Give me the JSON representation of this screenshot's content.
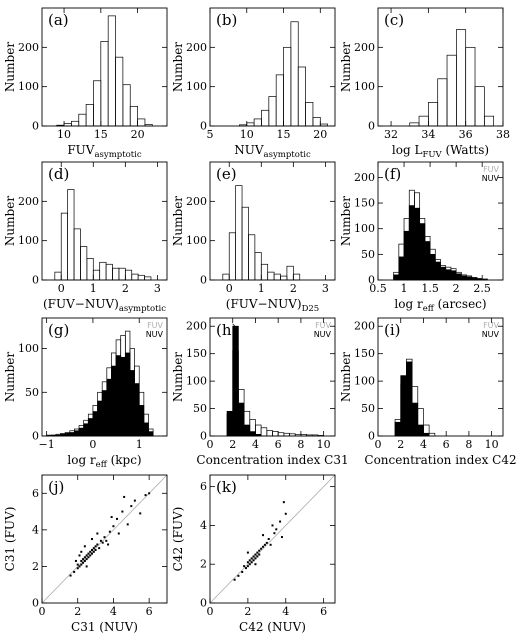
{
  "figure": {
    "background": "#ffffff",
    "ink": "#000000",
    "legend_fuv_color": "#b0b0b0"
  },
  "chart_data": [
    {
      "id": "a",
      "panel_label": "(a)",
      "type": "bar",
      "ylabel": "Number",
      "xlabel": "FUV",
      "xlabel_sub": "asymptotic",
      "xlim": [
        7,
        24
      ],
      "ylim": [
        0,
        300
      ],
      "xticks": [
        10,
        15,
        20
      ],
      "yticks": [
        0,
        100,
        200
      ],
      "histograms": [
        {
          "style": "open",
          "edges": [
            9,
            10,
            11,
            12,
            13,
            14,
            15,
            16,
            17,
            18,
            19,
            20,
            21,
            22
          ],
          "counts": [
            2,
            6,
            12,
            30,
            55,
            115,
            215,
            280,
            175,
            105,
            50,
            18,
            4
          ]
        }
      ]
    },
    {
      "id": "b",
      "panel_label": "(b)",
      "type": "bar",
      "ylabel": "Number",
      "xlabel": "NUV",
      "xlabel_sub": "asymptotic",
      "xlim": [
        5,
        22
      ],
      "ylim": [
        0,
        300
      ],
      "xticks": [
        5,
        10,
        15,
        20
      ],
      "yticks": [
        0,
        100,
        200
      ],
      "histograms": [
        {
          "style": "open",
          "edges": [
            9,
            10,
            11,
            12,
            13,
            14,
            15,
            16,
            17,
            18,
            19,
            20,
            21
          ],
          "counts": [
            3,
            8,
            18,
            40,
            75,
            130,
            200,
            265,
            150,
            60,
            22,
            5
          ]
        }
      ]
    },
    {
      "id": "c",
      "panel_label": "(c)",
      "type": "bar",
      "ylabel": "Number",
      "xlabel": "log L",
      "xlabel_sub": "FUV",
      "xlabel_after": " (Watts)",
      "xlim": [
        31.3,
        38
      ],
      "ylim": [
        0,
        300
      ],
      "xticks": [
        32,
        34,
        36,
        38
      ],
      "yticks": [
        0,
        100,
        200
      ],
      "histograms": [
        {
          "style": "open",
          "edges": [
            33,
            33.5,
            34,
            34.5,
            35,
            35.5,
            36,
            36.5,
            37,
            37.5
          ],
          "counts": [
            8,
            25,
            60,
            120,
            180,
            245,
            200,
            100,
            25
          ]
        }
      ]
    },
    {
      "id": "d",
      "panel_label": "(d)",
      "type": "bar",
      "ylabel": "Number",
      "xlabel": "(FUV−NUV)",
      "xlabel_sub": "asymptotic",
      "xlim": [
        -0.6,
        3.3
      ],
      "ylim": [
        0,
        300
      ],
      "xticks": [
        0,
        1,
        2,
        3
      ],
      "yticks": [
        0,
        100,
        200
      ],
      "histograms": [
        {
          "style": "open",
          "edges": [
            -0.2,
            0,
            0.2,
            0.4,
            0.6,
            0.8,
            1.0,
            1.2,
            1.4,
            1.6,
            1.8,
            2.0,
            2.2,
            2.4,
            2.6,
            2.8
          ],
          "counts": [
            20,
            170,
            230,
            130,
            85,
            55,
            25,
            45,
            40,
            30,
            30,
            25,
            15,
            12,
            8
          ]
        }
      ]
    },
    {
      "id": "e",
      "panel_label": "(e)",
      "type": "bar",
      "ylabel": "Number",
      "xlabel": "(FUV−NUV)",
      "xlabel_sub": "D25",
      "xlim": [
        -0.6,
        3.3
      ],
      "ylim": [
        0,
        300
      ],
      "xticks": [
        0,
        1,
        2,
        3
      ],
      "yticks": [
        0,
        100,
        200
      ],
      "histograms": [
        {
          "style": "open",
          "edges": [
            -0.2,
            0,
            0.2,
            0.4,
            0.6,
            0.8,
            1.0,
            1.2,
            1.4,
            1.6,
            1.8,
            2.0,
            2.2
          ],
          "counts": [
            15,
            120,
            240,
            185,
            115,
            70,
            40,
            20,
            15,
            10,
            35,
            15
          ]
        }
      ]
    },
    {
      "id": "f",
      "panel_label": "(f)",
      "type": "bar",
      "ylabel": "Number",
      "xlabel": "log r",
      "xlabel_sub": "eff",
      "xlabel_after": " (arcsec)",
      "xlim": [
        0.5,
        2.9
      ],
      "ylim": [
        0,
        230
      ],
      "xticks": [
        0.5,
        1,
        1.5,
        2,
        2.5
      ],
      "yticks": [
        0,
        50,
        100,
        150,
        200
      ],
      "legend": [
        "FUV",
        "NUV"
      ],
      "legend_position": "top-right",
      "histograms": [
        {
          "name": "FUV",
          "style": "open",
          "edges": [
            0.8,
            0.9,
            1.0,
            1.1,
            1.2,
            1.3,
            1.4,
            1.5,
            1.6,
            1.7,
            1.8,
            1.9,
            2.0,
            2.1,
            2.2,
            2.3,
            2.4,
            2.5,
            2.6
          ],
          "counts": [
            15,
            70,
            120,
            175,
            170,
            120,
            85,
            60,
            40,
            28,
            25,
            22,
            15,
            10,
            8,
            5,
            3,
            2
          ]
        },
        {
          "name": "NUV",
          "style": "filled",
          "edges": [
            0.8,
            0.9,
            1.0,
            1.1,
            1.2,
            1.3,
            1.4,
            1.5,
            1.6,
            1.7,
            1.8,
            1.9,
            2.0,
            2.1,
            2.2,
            2.3,
            2.4,
            2.5,
            2.6
          ],
          "counts": [
            10,
            45,
            95,
            145,
            140,
            110,
            75,
            50,
            35,
            25,
            20,
            18,
            12,
            8,
            6,
            4,
            2,
            1
          ]
        }
      ]
    },
    {
      "id": "g",
      "panel_label": "(g)",
      "type": "bar",
      "ylabel": "Number",
      "xlabel": "log r",
      "xlabel_sub": "eff",
      "xlabel_after": " (kpc)",
      "xlim": [
        -1.1,
        1.6
      ],
      "ylim": [
        0,
        135
      ],
      "xticks": [
        -1,
        0,
        1
      ],
      "yticks": [
        0,
        50,
        100
      ],
      "legend": [
        "FUV",
        "NUV"
      ],
      "legend_position": "top-right",
      "histograms": [
        {
          "name": "FUV",
          "style": "open",
          "edges": [
            -1,
            -0.9,
            -0.8,
            -0.7,
            -0.6,
            -0.5,
            -0.4,
            -0.3,
            -0.2,
            -0.1,
            0,
            0.1,
            0.2,
            0.3,
            0.4,
            0.5,
            0.6,
            0.7,
            0.8,
            0.9,
            1.0,
            1.1,
            1.2,
            1.3
          ],
          "counts": [
            1,
            1,
            2,
            3,
            4,
            6,
            8,
            12,
            18,
            25,
            35,
            50,
            62,
            78,
            95,
            110,
            115,
            120,
            100,
            80,
            50,
            25,
            8
          ]
        },
        {
          "name": "NUV",
          "style": "filled",
          "edges": [
            -1,
            -0.9,
            -0.8,
            -0.7,
            -0.6,
            -0.5,
            -0.4,
            -0.3,
            -0.2,
            -0.1,
            0,
            0.1,
            0.2,
            0.3,
            0.4,
            0.5,
            0.6,
            0.7,
            0.8,
            0.9,
            1.0,
            1.1,
            1.2,
            1.3
          ],
          "counts": [
            0,
            1,
            1,
            2,
            3,
            4,
            6,
            9,
            14,
            20,
            28,
            40,
            52,
            65,
            80,
            92,
            90,
            95,
            75,
            60,
            35,
            15,
            5
          ]
        }
      ]
    },
    {
      "id": "h",
      "panel_label": "(h)",
      "type": "bar",
      "ylabel": "Number",
      "xlabel": "Concentration index C31",
      "xlim": [
        0,
        11
      ],
      "ylim": [
        0,
        215
      ],
      "xticks": [
        0,
        2,
        4,
        6,
        8,
        10
      ],
      "yticks": [
        0,
        50,
        100,
        150,
        200
      ],
      "legend": [
        "FUV",
        "NUV"
      ],
      "legend_position": "top-right",
      "histograms": [
        {
          "name": "FUV",
          "style": "open",
          "edges": [
            1.5,
            2,
            2.5,
            3,
            3.5,
            4,
            4.5,
            5,
            5.5,
            6,
            6.5,
            7,
            7.5,
            8,
            8.5,
            9,
            9.5,
            10
          ],
          "counts": [
            40,
            155,
            85,
            45,
            30,
            20,
            15,
            10,
            8,
            6,
            5,
            4,
            3,
            3,
            2,
            2,
            1
          ]
        },
        {
          "name": "NUV",
          "style": "filled",
          "edges": [
            1.5,
            2,
            2.5,
            3,
            3.5,
            4,
            4.5
          ],
          "counts": [
            45,
            200,
            60,
            20,
            8,
            3
          ]
        }
      ]
    },
    {
      "id": "i",
      "panel_label": "(i)",
      "type": "bar",
      "ylabel": "Number",
      "xlabel": "Concentration index C42",
      "xlim": [
        0,
        11
      ],
      "ylim": [
        0,
        215
      ],
      "xticks": [
        0,
        2,
        4,
        6,
        8,
        10
      ],
      "yticks": [
        0,
        50,
        100,
        150,
        200
      ],
      "legend": [
        "FUV",
        "NUV"
      ],
      "legend_position": "top-right",
      "histograms": [
        {
          "name": "FUV",
          "style": "open",
          "edges": [
            1.5,
            2,
            2.5,
            3,
            3.5,
            4,
            4.5,
            5
          ],
          "counts": [
            30,
            95,
            140,
            90,
            50,
            20,
            5
          ]
        },
        {
          "name": "NUV",
          "style": "filled",
          "edges": [
            1.5,
            2,
            2.5,
            3,
            3.5,
            4,
            4.5
          ],
          "counts": [
            25,
            110,
            135,
            60,
            20,
            5
          ]
        }
      ]
    },
    {
      "id": "j",
      "panel_label": "(j)",
      "type": "scatter",
      "xlabel": "C31 (NUV)",
      "ylabel": "C31 (FUV)",
      "xlim": [
        0,
        7
      ],
      "ylim": [
        0,
        7
      ],
      "xticks": [
        0,
        2,
        4,
        6
      ],
      "yticks": [
        0,
        2,
        4,
        6
      ],
      "reference_line": "y = x",
      "points": [
        [
          1.6,
          1.5
        ],
        [
          1.8,
          1.7
        ],
        [
          2.0,
          1.9
        ],
        [
          2.0,
          2.1
        ],
        [
          2.1,
          2.0
        ],
        [
          2.2,
          2.3
        ],
        [
          2.2,
          2.1
        ],
        [
          2.3,
          2.4
        ],
        [
          2.3,
          2.2
        ],
        [
          2.4,
          2.5
        ],
        [
          2.4,
          2.3
        ],
        [
          2.5,
          2.6
        ],
        [
          2.5,
          2.4
        ],
        [
          2.6,
          2.7
        ],
        [
          2.6,
          2.5
        ],
        [
          2.7,
          2.8
        ],
        [
          2.7,
          2.6
        ],
        [
          2.8,
          2.9
        ],
        [
          2.8,
          2.7
        ],
        [
          2.9,
          3.0
        ],
        [
          2.9,
          2.8
        ],
        [
          3.0,
          3.1
        ],
        [
          3.0,
          2.9
        ],
        [
          3.1,
          3.2
        ],
        [
          3.2,
          3.0
        ],
        [
          3.3,
          3.4
        ],
        [
          3.4,
          3.3
        ],
        [
          3.5,
          3.6
        ],
        [
          3.6,
          3.4
        ],
        [
          3.8,
          3.9
        ],
        [
          4.0,
          4.2
        ],
        [
          4.2,
          4.6
        ],
        [
          4.5,
          5.0
        ],
        [
          4.8,
          4.3
        ],
        [
          5.0,
          5.3
        ],
        [
          5.2,
          5.6
        ],
        [
          5.5,
          4.9
        ],
        [
          3.9,
          4.7
        ],
        [
          4.3,
          3.8
        ],
        [
          2.2,
          2.8
        ],
        [
          2.5,
          2.0
        ],
        [
          1.9,
          2.3
        ],
        [
          3.1,
          3.8
        ],
        [
          3.7,
          3.2
        ],
        [
          4.6,
          5.8
        ],
        [
          5.8,
          5.9
        ],
        [
          6.0,
          6.0
        ],
        [
          2.4,
          3.1
        ],
        [
          2.1,
          2.6
        ],
        [
          2.8,
          3.5
        ]
      ]
    },
    {
      "id": "k",
      "panel_label": "(k)",
      "type": "scatter",
      "xlabel": "C42 (NUV)",
      "ylabel": "C42 (FUV)",
      "xlim": [
        0,
        6.6
      ],
      "ylim": [
        0,
        6.6
      ],
      "xticks": [
        0,
        2,
        4,
        6
      ],
      "yticks": [
        0,
        2,
        4,
        6
      ],
      "reference_line": "y = x",
      "points": [
        [
          1.3,
          1.2
        ],
        [
          1.5,
          1.4
        ],
        [
          1.7,
          1.6
        ],
        [
          1.8,
          1.9
        ],
        [
          1.9,
          1.8
        ],
        [
          2.0,
          2.1
        ],
        [
          2.0,
          1.9
        ],
        [
          2.1,
          2.2
        ],
        [
          2.1,
          2.0
        ],
        [
          2.2,
          2.3
        ],
        [
          2.2,
          2.1
        ],
        [
          2.3,
          2.4
        ],
        [
          2.3,
          2.2
        ],
        [
          2.4,
          2.5
        ],
        [
          2.4,
          2.3
        ],
        [
          2.5,
          2.6
        ],
        [
          2.5,
          2.4
        ],
        [
          2.6,
          2.7
        ],
        [
          2.6,
          2.5
        ],
        [
          2.7,
          2.8
        ],
        [
          2.8,
          2.9
        ],
        [
          2.9,
          3.0
        ],
        [
          3.0,
          3.1
        ],
        [
          3.1,
          3.3
        ],
        [
          3.2,
          3.0
        ],
        [
          3.4,
          3.6
        ],
        [
          3.5,
          3.8
        ],
        [
          3.7,
          4.2
        ],
        [
          3.8,
          3.4
        ],
        [
          4.0,
          4.6
        ],
        [
          3.9,
          5.2
        ],
        [
          3.3,
          4.0
        ],
        [
          2.8,
          3.5
        ],
        [
          2.0,
          2.6
        ],
        [
          2.4,
          2.0
        ]
      ]
    }
  ]
}
